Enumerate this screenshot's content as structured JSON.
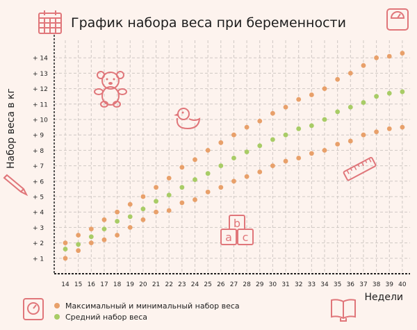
{
  "chart_data": {
    "type": "scatter",
    "title": "График набора веса при беременности",
    "xlabel": "Недели",
    "ylabel": "Набор веса в кг",
    "x": [
      14,
      15,
      16,
      17,
      18,
      19,
      20,
      21,
      22,
      23,
      24,
      25,
      26,
      27,
      28,
      29,
      30,
      31,
      32,
      33,
      34,
      35,
      36,
      37,
      38,
      39,
      40
    ],
    "xlim": [
      14,
      40
    ],
    "ylim": [
      0,
      14
    ],
    "yticks": [
      "+ 1",
      "+ 2",
      "+ 3",
      "+ 4",
      "+ 5",
      "+ 6",
      "+ 7",
      "+ 8",
      "+ 9",
      "+ 10",
      "+ 11",
      "+ 12",
      "+ 13",
      "+ 14"
    ],
    "grid": true,
    "legend_position": "bottom-left",
    "series": [
      {
        "name": "Максимальный и минимальный набор веса",
        "color": "#e8a06a",
        "values": [
          2.0,
          2.5,
          2.9,
          3.5,
          4.0,
          4.5,
          5.0,
          5.6,
          6.2,
          6.9,
          7.4,
          8.0,
          8.5,
          9.0,
          9.5,
          9.9,
          10.4,
          10.8,
          11.3,
          11.6,
          12.0,
          12.6,
          13.0,
          13.5,
          14.0,
          14.1,
          14.3
        ]
      },
      {
        "name": "Средний набор веса",
        "color": "#a8cc66",
        "values": [
          1.6,
          1.9,
          2.4,
          2.9,
          3.4,
          3.7,
          4.2,
          4.7,
          5.1,
          5.6,
          6.1,
          6.5,
          7.0,
          7.5,
          7.9,
          8.3,
          8.7,
          9.0,
          9.4,
          9.6,
          10.0,
          10.5,
          10.8,
          11.1,
          11.5,
          11.7,
          11.8
        ]
      },
      {
        "name": "Минимальный набор веса",
        "color": "#e8a06a",
        "values": [
          1.0,
          1.5,
          2.0,
          2.2,
          2.5,
          3.0,
          3.5,
          4.0,
          4.1,
          4.6,
          4.8,
          5.3,
          5.6,
          6.0,
          6.3,
          6.6,
          7.0,
          7.3,
          7.5,
          7.8,
          8.0,
          8.4,
          8.6,
          9.0,
          9.2,
          9.4,
          9.5
        ]
      }
    ]
  },
  "legend": [
    {
      "label": "Максимальный и минимальный набор веса",
      "color": "#e8a06a"
    },
    {
      "label": "Средний набор веса",
      "color": "#a8cc66"
    }
  ],
  "colors": {
    "axis": "#222222",
    "grid": "#cfc8c4",
    "decor": "#e0767a",
    "background": "#fdf3ee"
  },
  "decorations": [
    "calendar-icon",
    "scale-icon",
    "teddy-bear-icon",
    "rubber-duck-icon",
    "abc-blocks-icon",
    "ruler-icon",
    "pencil-icon",
    "baby-scale-icon",
    "book-icon"
  ],
  "decor_letters": {
    "a": "a",
    "b": "b",
    "c": "c"
  }
}
